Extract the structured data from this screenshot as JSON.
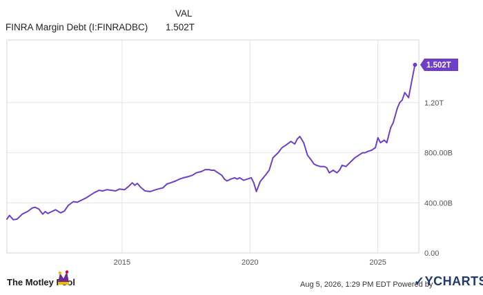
{
  "legend": {
    "header": "VAL",
    "series_name": "FINRA Margin Debt (I:FINRADBC)",
    "series_value": "1.502T"
  },
  "footer": {
    "brand": "The Motley Fool",
    "timestamp": "Aug 5, 2026, 1:29 PM EDT",
    "powered_by": "Powered by",
    "provider": "YCHARTS"
  },
  "colors": {
    "line": "#6d3fc8",
    "grid": "#e4e4e4",
    "axis_text": "#555555"
  },
  "chart_data": {
    "type": "line",
    "title": "",
    "xlabel": "",
    "ylabel": "",
    "xlim": [
      2010.5,
      2026.6
    ],
    "ylim": [
      0,
      1700
    ],
    "x_ticks": [
      2015,
      2020,
      2025
    ],
    "x_tick_labels": [
      "2015",
      "2020",
      "2025"
    ],
    "y_ticks": [
      0,
      400,
      800,
      1200
    ],
    "y_tick_labels": [
      "0.00",
      "400.00B",
      "800.00B",
      "1.20T"
    ],
    "last_value_label": "1.502T",
    "grid": true,
    "series": [
      {
        "name": "FINRA Margin Debt (I:FINRADBC)",
        "x": [
          2010.5,
          2010.6,
          2010.75,
          2010.9,
          2011.1,
          2011.3,
          2011.5,
          2011.6,
          2011.75,
          2011.9,
          2012.0,
          2012.1,
          2012.25,
          2012.4,
          2012.6,
          2012.75,
          2012.9,
          2013.1,
          2013.25,
          2013.4,
          2013.6,
          2013.75,
          2013.9,
          2014.1,
          2014.25,
          2014.4,
          2014.6,
          2014.75,
          2014.9,
          2015.1,
          2015.25,
          2015.4,
          2015.5,
          2015.6,
          2015.75,
          2015.9,
          2016.1,
          2016.25,
          2016.4,
          2016.6,
          2016.75,
          2016.9,
          2017.1,
          2017.25,
          2017.4,
          2017.6,
          2017.75,
          2017.9,
          2018.1,
          2018.25,
          2018.4,
          2018.5,
          2018.6,
          2018.75,
          2018.9,
          2019.0,
          2019.1,
          2019.25,
          2019.4,
          2019.5,
          2019.6,
          2019.75,
          2019.9,
          2020.05,
          2020.15,
          2020.25,
          2020.4,
          2020.6,
          2020.75,
          2020.9,
          2021.1,
          2021.25,
          2021.4,
          2021.6,
          2021.75,
          2021.85,
          2021.95,
          2022.1,
          2022.25,
          2022.4,
          2022.5,
          2022.6,
          2022.75,
          2022.9,
          2023.0,
          2023.1,
          2023.25,
          2023.4,
          2023.5,
          2023.6,
          2023.75,
          2023.9,
          2024.0,
          2024.1,
          2024.25,
          2024.4,
          2024.5,
          2024.6,
          2024.75,
          2024.9,
          2025.0,
          2025.1,
          2025.25,
          2025.35,
          2025.5,
          2025.6,
          2025.75,
          2025.85,
          2025.95,
          2026.05,
          2026.2,
          2026.35,
          2026.45
        ],
        "values": [
          270,
          300,
          265,
          270,
          310,
          330,
          360,
          365,
          350,
          310,
          330,
          315,
          330,
          345,
          320,
          335,
          380,
          410,
          405,
          420,
          440,
          460,
          480,
          500,
          495,
          505,
          500,
          495,
          510,
          505,
          530,
          560,
          540,
          555,
          520,
          495,
          490,
          500,
          510,
          520,
          550,
          560,
          575,
          590,
          600,
          610,
          620,
          640,
          650,
          665,
          665,
          660,
          660,
          640,
          620,
          590,
          575,
          590,
          600,
          590,
          600,
          580,
          590,
          600,
          560,
          490,
          570,
          620,
          660,
          760,
          800,
          840,
          860,
          890,
          870,
          910,
          930,
          880,
          780,
          740,
          710,
          700,
          690,
          690,
          680,
          640,
          660,
          640,
          660,
          700,
          690,
          720,
          740,
          760,
          780,
          800,
          800,
          810,
          820,
          840,
          920,
          880,
          900,
          880,
          1000,
          1040,
          1150,
          1200,
          1220,
          1280,
          1240,
          1400,
          1502
        ]
      }
    ]
  }
}
